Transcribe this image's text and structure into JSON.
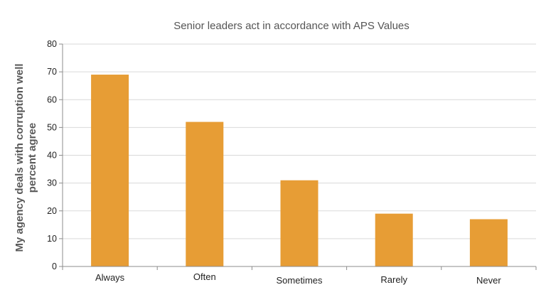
{
  "chart_data": {
    "type": "bar",
    "title": "Senior leaders act in accordance with APS Values",
    "ylabel_lines": [
      "My agency deals with corruption well",
      "percent agree"
    ],
    "xlabel": "",
    "categories": [
      "Always",
      "Often",
      "Sometimes",
      "Rarely",
      "Never"
    ],
    "values": [
      69,
      52,
      31,
      19,
      17
    ],
    "ylim": [
      0,
      80
    ],
    "yticks": [
      0,
      10,
      20,
      30,
      40,
      50,
      60,
      70,
      80
    ],
    "grid": true,
    "legend": "none",
    "colors": {
      "bar": "#E79D35"
    }
  }
}
